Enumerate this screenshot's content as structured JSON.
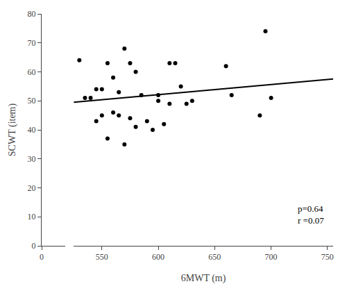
{
  "chart_data": [
    {
      "type": "scatter",
      "ylabel": "SCWT (item)",
      "xlim": [
        0,
        10
      ],
      "xticks": [
        0
      ],
      "ylim": [
        0,
        80
      ],
      "yticks": [
        0,
        10,
        20,
        30,
        40,
        50,
        60,
        70,
        80
      ],
      "grid": false
    },
    {
      "type": "scatter",
      "xlabel": "6MWT (m)",
      "annotation": "p=0.64\nr =0.07",
      "xlim": [
        525,
        755
      ],
      "xticks": [
        550,
        600,
        650,
        700,
        750
      ],
      "ylim": [
        0,
        80
      ],
      "yticks": [
        0,
        10,
        20,
        30,
        40,
        50,
        60,
        70,
        80
      ],
      "tick_labels": "x",
      "grid": false,
      "series": [
        {
          "type": "scatter",
          "color": "#000000",
          "x": [
            530,
            535,
            540,
            545,
            545,
            550,
            550,
            555,
            555,
            560,
            560,
            565,
            565,
            570,
            570,
            575,
            575,
            580,
            580,
            585,
            590,
            595,
            600,
            600,
            605,
            610,
            610,
            615,
            620,
            625,
            630,
            660,
            665,
            690,
            695,
            700
          ],
          "values": [
            64,
            51,
            51,
            43,
            54,
            45,
            54,
            37,
            63,
            46,
            58,
            45,
            53,
            35,
            68,
            44,
            63,
            41,
            60,
            52,
            43,
            40,
            52,
            50,
            42,
            63,
            49,
            63,
            55,
            49,
            50,
            62,
            52,
            45,
            74,
            51
          ]
        },
        {
          "type": "line",
          "color": "#000000",
          "x": [
            525,
            755
          ],
          "values": [
            49.55,
            57.5233
          ]
        }
      ]
    }
  ]
}
